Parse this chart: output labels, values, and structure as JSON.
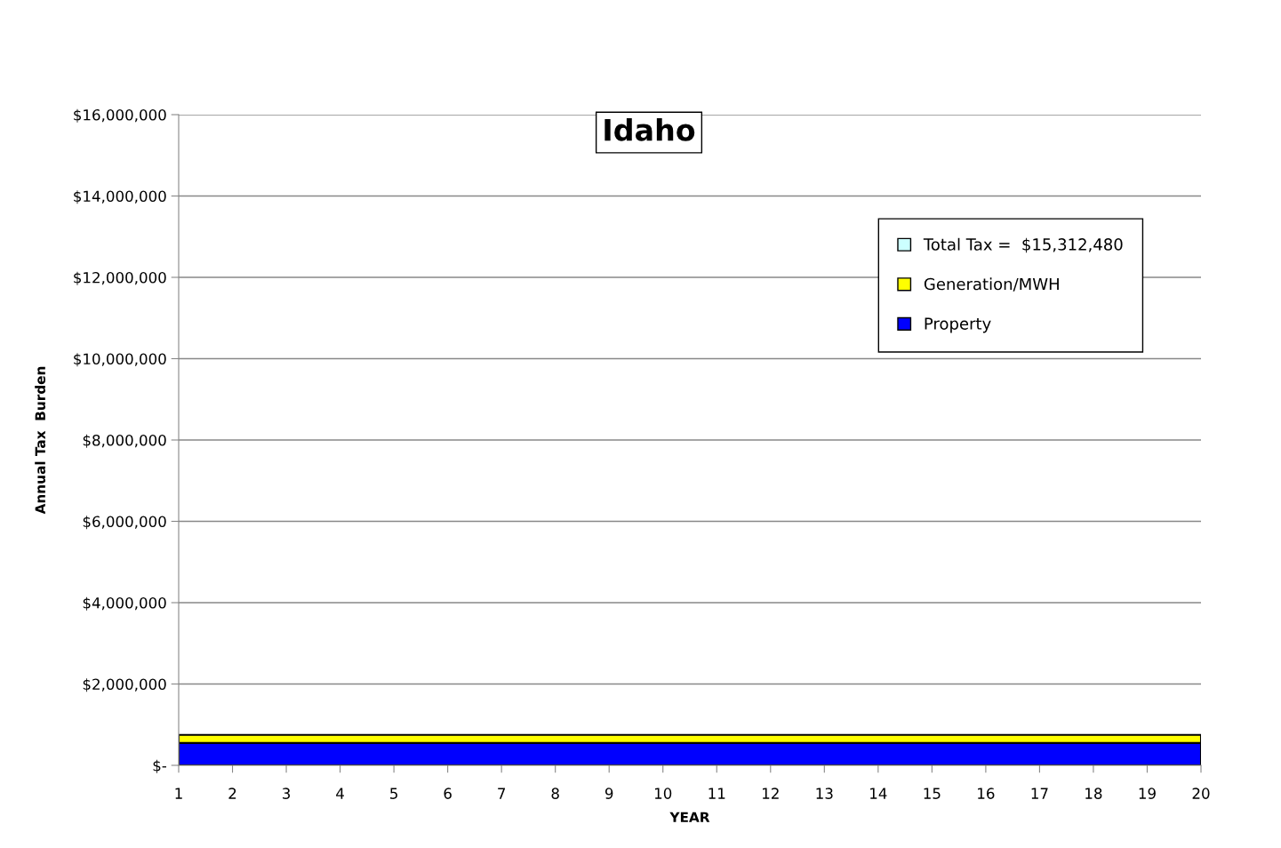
{
  "chart_data": {
    "type": "area",
    "stacked": true,
    "title": "Idaho",
    "xlabel": "YEAR",
    "ylabel": "Annual Tax  Burden",
    "categories": [
      "1",
      "2",
      "3",
      "4",
      "5",
      "6",
      "7",
      "8",
      "9",
      "10",
      "11",
      "12",
      "13",
      "14",
      "15",
      "16",
      "17",
      "18",
      "19",
      "20"
    ],
    "series": [
      {
        "name": "Property",
        "color": "#0000ff",
        "values": [
          550000,
          550000,
          550000,
          550000,
          550000,
          550000,
          550000,
          550000,
          550000,
          550000,
          550000,
          550000,
          550000,
          550000,
          550000,
          550000,
          550000,
          550000,
          550000,
          550000
        ]
      },
      {
        "name": "Generation/MWH",
        "color": "#ffff00",
        "values": [
          200000,
          200000,
          200000,
          200000,
          200000,
          200000,
          200000,
          200000,
          200000,
          200000,
          200000,
          200000,
          200000,
          200000,
          200000,
          200000,
          200000,
          200000,
          200000,
          200000
        ]
      },
      {
        "name": "Total Tax =  $15,312,480",
        "color": "#ccffff",
        "values": [
          null,
          null,
          null,
          null,
          null,
          null,
          null,
          null,
          null,
          null,
          null,
          null,
          null,
          null,
          null,
          null,
          null,
          null,
          null,
          null
        ]
      }
    ],
    "ylim": [
      0,
      16000000
    ],
    "yticks": [
      {
        "value": 0,
        "label": "$-"
      },
      {
        "value": 2000000,
        "label": "$2,000,000"
      },
      {
        "value": 4000000,
        "label": "$4,000,000"
      },
      {
        "value": 6000000,
        "label": "$6,000,000"
      },
      {
        "value": 8000000,
        "label": "$8,000,000"
      },
      {
        "value": 10000000,
        "label": "$10,000,000"
      },
      {
        "value": 12000000,
        "label": "$12,000,000"
      },
      {
        "value": 14000000,
        "label": "$14,000,000"
      },
      {
        "value": 16000000,
        "label": "$16,000,000"
      }
    ],
    "grid": "y",
    "legend": "top right"
  }
}
